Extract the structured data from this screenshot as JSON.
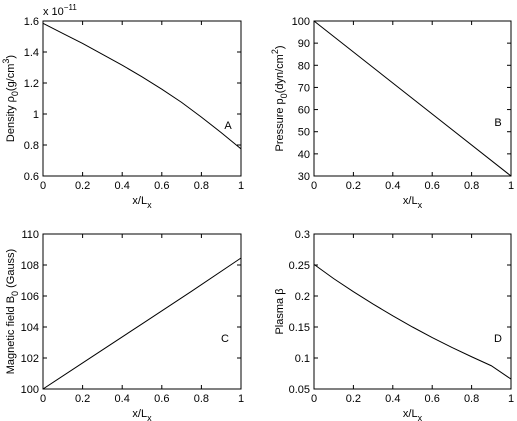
{
  "chart_data": [
    {
      "type": "line",
      "panel_label": "A",
      "xlabel": "x/L",
      "xlabel_sub": "x",
      "ylabel": "Density ρ",
      "ylabel_sub": "0",
      "ylabel_unit": "(g/cm",
      "ylabel_unit_sup": "3",
      "ylabel_unit_close": ")",
      "exponent_base": "x 10",
      "exponent": "−11",
      "xlim": [
        0,
        1
      ],
      "ylim": [
        0.6,
        1.6
      ],
      "x_ticks": [
        "0",
        "0.2",
        "0.4",
        "0.6",
        "0.8",
        "1"
      ],
      "y_ticks": [
        "0.6",
        "0.8",
        "1",
        "1.2",
        "1.4",
        "1.6"
      ],
      "series": [
        {
          "x": [
            0,
            0.1,
            0.2,
            0.3,
            0.4,
            0.5,
            0.6,
            0.7,
            0.8,
            0.9,
            1.0
          ],
          "y": [
            1.585,
            1.52,
            1.455,
            1.385,
            1.315,
            1.24,
            1.16,
            1.075,
            0.98,
            0.88,
            0.775
          ]
        }
      ]
    },
    {
      "type": "line",
      "panel_label": "B",
      "xlabel": "x/L",
      "xlabel_sub": "x",
      "ylabel": "Pressure p",
      "ylabel_sub": "0",
      "ylabel_unit": "(dyn/cm",
      "ylabel_unit_sup": "2",
      "ylabel_unit_close": ")",
      "xlim": [
        0,
        1
      ],
      "ylim": [
        30,
        100
      ],
      "x_ticks": [
        "0",
        "0.2",
        "0.4",
        "0.6",
        "0.8",
        "1"
      ],
      "y_ticks": [
        "30",
        "40",
        "50",
        "60",
        "70",
        "80",
        "90",
        "100"
      ],
      "series": [
        {
          "x": [
            0,
            1
          ],
          "y": [
            100,
            30
          ]
        }
      ]
    },
    {
      "type": "line",
      "panel_label": "C",
      "xlabel": "x/L",
      "xlabel_sub": "x",
      "ylabel": "Magnetic field B",
      "ylabel_sub": "0",
      "ylabel_unit": " (Gauss)",
      "xlim": [
        0,
        1
      ],
      "ylim": [
        100,
        110
      ],
      "x_ticks": [
        "0",
        "0.2",
        "0.4",
        "0.6",
        "0.8",
        "1"
      ],
      "y_ticks": [
        "100",
        "102",
        "104",
        "106",
        "108",
        "110"
      ],
      "series": [
        {
          "x": [
            0,
            0.25,
            0.5,
            0.75,
            1.0
          ],
          "y": [
            100,
            102.1,
            104.2,
            106.3,
            108.45
          ]
        }
      ]
    },
    {
      "type": "line",
      "panel_label": "D",
      "xlabel": "x/L",
      "xlabel_sub": "x",
      "ylabel": "Plasma β",
      "xlim": [
        0,
        1
      ],
      "ylim": [
        0.05,
        0.3
      ],
      "x_ticks": [
        "0",
        "0.2",
        "0.4",
        "0.6",
        "0.8",
        "1"
      ],
      "y_ticks": [
        "0.05",
        "0.1",
        "0.15",
        "0.2",
        "0.25",
        "0.3"
      ],
      "series": [
        {
          "x": [
            0,
            0.1,
            0.2,
            0.3,
            0.4,
            0.5,
            0.6,
            0.7,
            0.8,
            0.9,
            1.0
          ],
          "y": [
            0.251,
            0.228,
            0.207,
            0.187,
            0.168,
            0.15,
            0.133,
            0.117,
            0.102,
            0.0875,
            0.066
          ]
        }
      ]
    }
  ]
}
